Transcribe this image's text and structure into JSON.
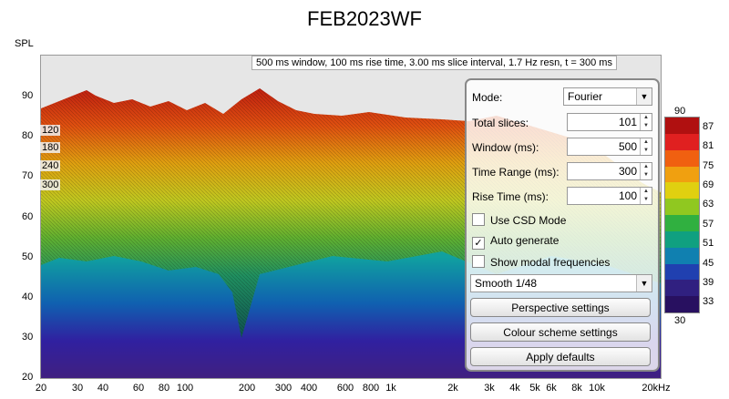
{
  "title": "FEB2023WF",
  "y_axis_label": "SPL",
  "y_ticks": [
    "90",
    "80",
    "70",
    "60",
    "50",
    "40",
    "30",
    "20"
  ],
  "x_ticks": [
    "20",
    "30",
    "40",
    "60",
    "80",
    "100",
    "200",
    "300",
    "400",
    "600",
    "800",
    "1k",
    "2k",
    "3k",
    "4k",
    "5k",
    "6k",
    "8k",
    "10k",
    "20kHz"
  ],
  "info_text": "500 ms window, 100 ms rise time, 3.00 ms slice interval, 1.7 Hz resn, t = 300 ms",
  "slice_labels": [
    "120",
    "180",
    "240",
    "300"
  ],
  "panel": {
    "mode_label": "Mode:",
    "mode_value": "Fourier",
    "total_slices_label": "Total slices:",
    "total_slices_value": "101",
    "window_label": "Window (ms):",
    "window_value": "500",
    "time_range_label": "Time Range (ms):",
    "time_range_value": "300",
    "rise_time_label": "Rise Time (ms):",
    "rise_time_value": "100",
    "use_csd_label": "Use CSD Mode",
    "use_csd_checked": false,
    "auto_generate_label": "Auto generate",
    "auto_generate_checked": true,
    "show_modal_label": "Show modal frequencies",
    "show_modal_checked": false,
    "smoothing_value": "Smooth 1/48",
    "perspective_button": "Perspective settings",
    "colour_button": "Colour scheme settings",
    "defaults_button": "Apply defaults"
  },
  "colour_scale_labels": [
    "90",
    "87",
    "81",
    "75",
    "69",
    "63",
    "57",
    "51",
    "45",
    "39",
    "33",
    "30"
  ],
  "colour_scale_colors": [
    "#b01010",
    "#e02020",
    "#f06010",
    "#f0a010",
    "#e0d010",
    "#90c820",
    "#30b040",
    "#10a080",
    "#1080b0",
    "#2040b0",
    "#302080",
    "#281060"
  ]
}
